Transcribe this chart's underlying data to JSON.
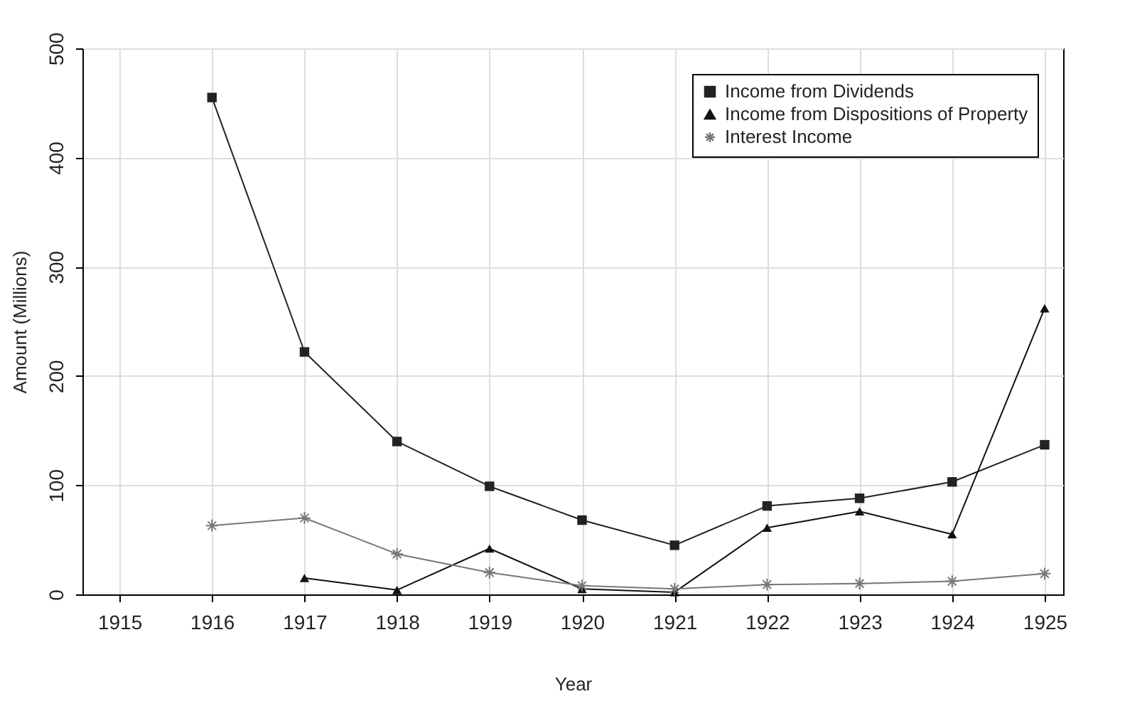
{
  "chart_data": {
    "type": "line",
    "xlabel": "Year",
    "ylabel": "Amount (Millions)",
    "x": [
      1916,
      1917,
      1918,
      1919,
      1920,
      1921,
      1922,
      1923,
      1924,
      1925
    ],
    "series": [
      {
        "name": "Income from Dividends",
        "color": "#222222",
        "marker": "square",
        "values": [
          455,
          222,
          140,
          99,
          68,
          45,
          81,
          88,
          103,
          137
        ]
      },
      {
        "name": "Income from Dispositions of Property",
        "color": "#111111",
        "marker": "triangle",
        "values": [
          null,
          15,
          4,
          42,
          5,
          2,
          61,
          76,
          55,
          262
        ]
      },
      {
        "name": "Interest Income",
        "color": "#777777",
        "marker": "cross",
        "values": [
          63,
          70,
          37,
          20,
          8,
          5,
          9,
          10,
          12,
          19
        ]
      }
    ],
    "xlim": [
      1914.6,
      1925.2
    ],
    "xticks": [
      1915,
      1916,
      1917,
      1918,
      1919,
      1920,
      1921,
      1922,
      1923,
      1924,
      1925
    ],
    "ylim": [
      0,
      500
    ],
    "yticks": [
      0,
      100,
      200,
      300,
      400,
      500
    ],
    "grid": true,
    "legend": "top right",
    "line_style": "solid"
  }
}
